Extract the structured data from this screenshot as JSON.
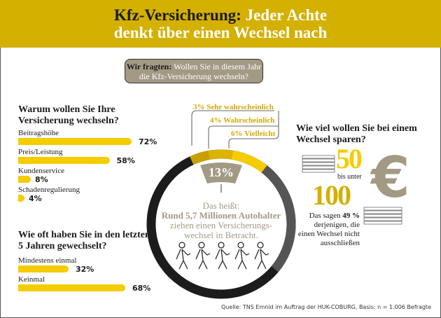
{
  "header": {
    "title_dark": "Kfz-Versicherung:",
    "title_light_1": "Jeder Achte",
    "title_light_2": "denkt über einen Wechsel nach"
  },
  "question": {
    "prefix": "Wir fragten:",
    "line1": "Wollen Sie in diesem Jahr",
    "line2": "die Kfz-Versicherung wechseln?"
  },
  "colors": {
    "brand_yellow": "#d4b000",
    "bar_yellow": "#f5cc00",
    "tan": "#a39a85",
    "dark": "#1c1c1c",
    "gray": "#555555"
  },
  "chart_data": [
    {
      "type": "bar",
      "title": "Warum wollen Sie Ihre Versicherung wechseln?",
      "categories": [
        "Beitragshöhe",
        "Preis/Leistung",
        "Kundenservice",
        "Schadenregulierung"
      ],
      "values": [
        72,
        58,
        8,
        4
      ],
      "labels": [
        "72%",
        "58%",
        "8%",
        "4%"
      ]
    },
    {
      "type": "bar",
      "title": "Wie oft haben Sie in den letzten 5 Jahren gewechselt?",
      "categories": [
        "Mindestens einmal",
        "Keinmal"
      ],
      "values": [
        32,
        68
      ],
      "labels": [
        "32%",
        "68%"
      ]
    },
    {
      "type": "pie",
      "total_label": "13%",
      "slices": [
        {
          "name": "Sehr wahrscheinlich",
          "value": 3,
          "label": "3%",
          "color": "#c9a000"
        },
        {
          "name": "Wahrscheinlich",
          "value": 4,
          "label": "4%",
          "color": "#dcb400"
        },
        {
          "name": "Vielleicht",
          "value": 6,
          "label": "6%",
          "color": "#f5cc00"
        }
      ]
    }
  ],
  "ring": {
    "line1": "Das heißt:",
    "line2": "Rund 5,7 Millionen Autohalter",
    "line3": "ziehen einen Versicherungs-",
    "line4": "wechsel in Betracht."
  },
  "savings": {
    "title_1": "Wie viel wollen Sie bei einem",
    "title_2": "Wechsel sparen?",
    "from": "50",
    "between": "bis unter",
    "to": "100",
    "currency": "€",
    "text_1": "Das sagen",
    "pct": "49 %",
    "text_2": "derjenigen, die",
    "text_3": "einen Wechsel nicht",
    "text_4": "ausschließen"
  },
  "source": "Quelle: TNS Emnid im Auftrag der HUK-COBURG, Basis: n = 1.006 Befragte"
}
